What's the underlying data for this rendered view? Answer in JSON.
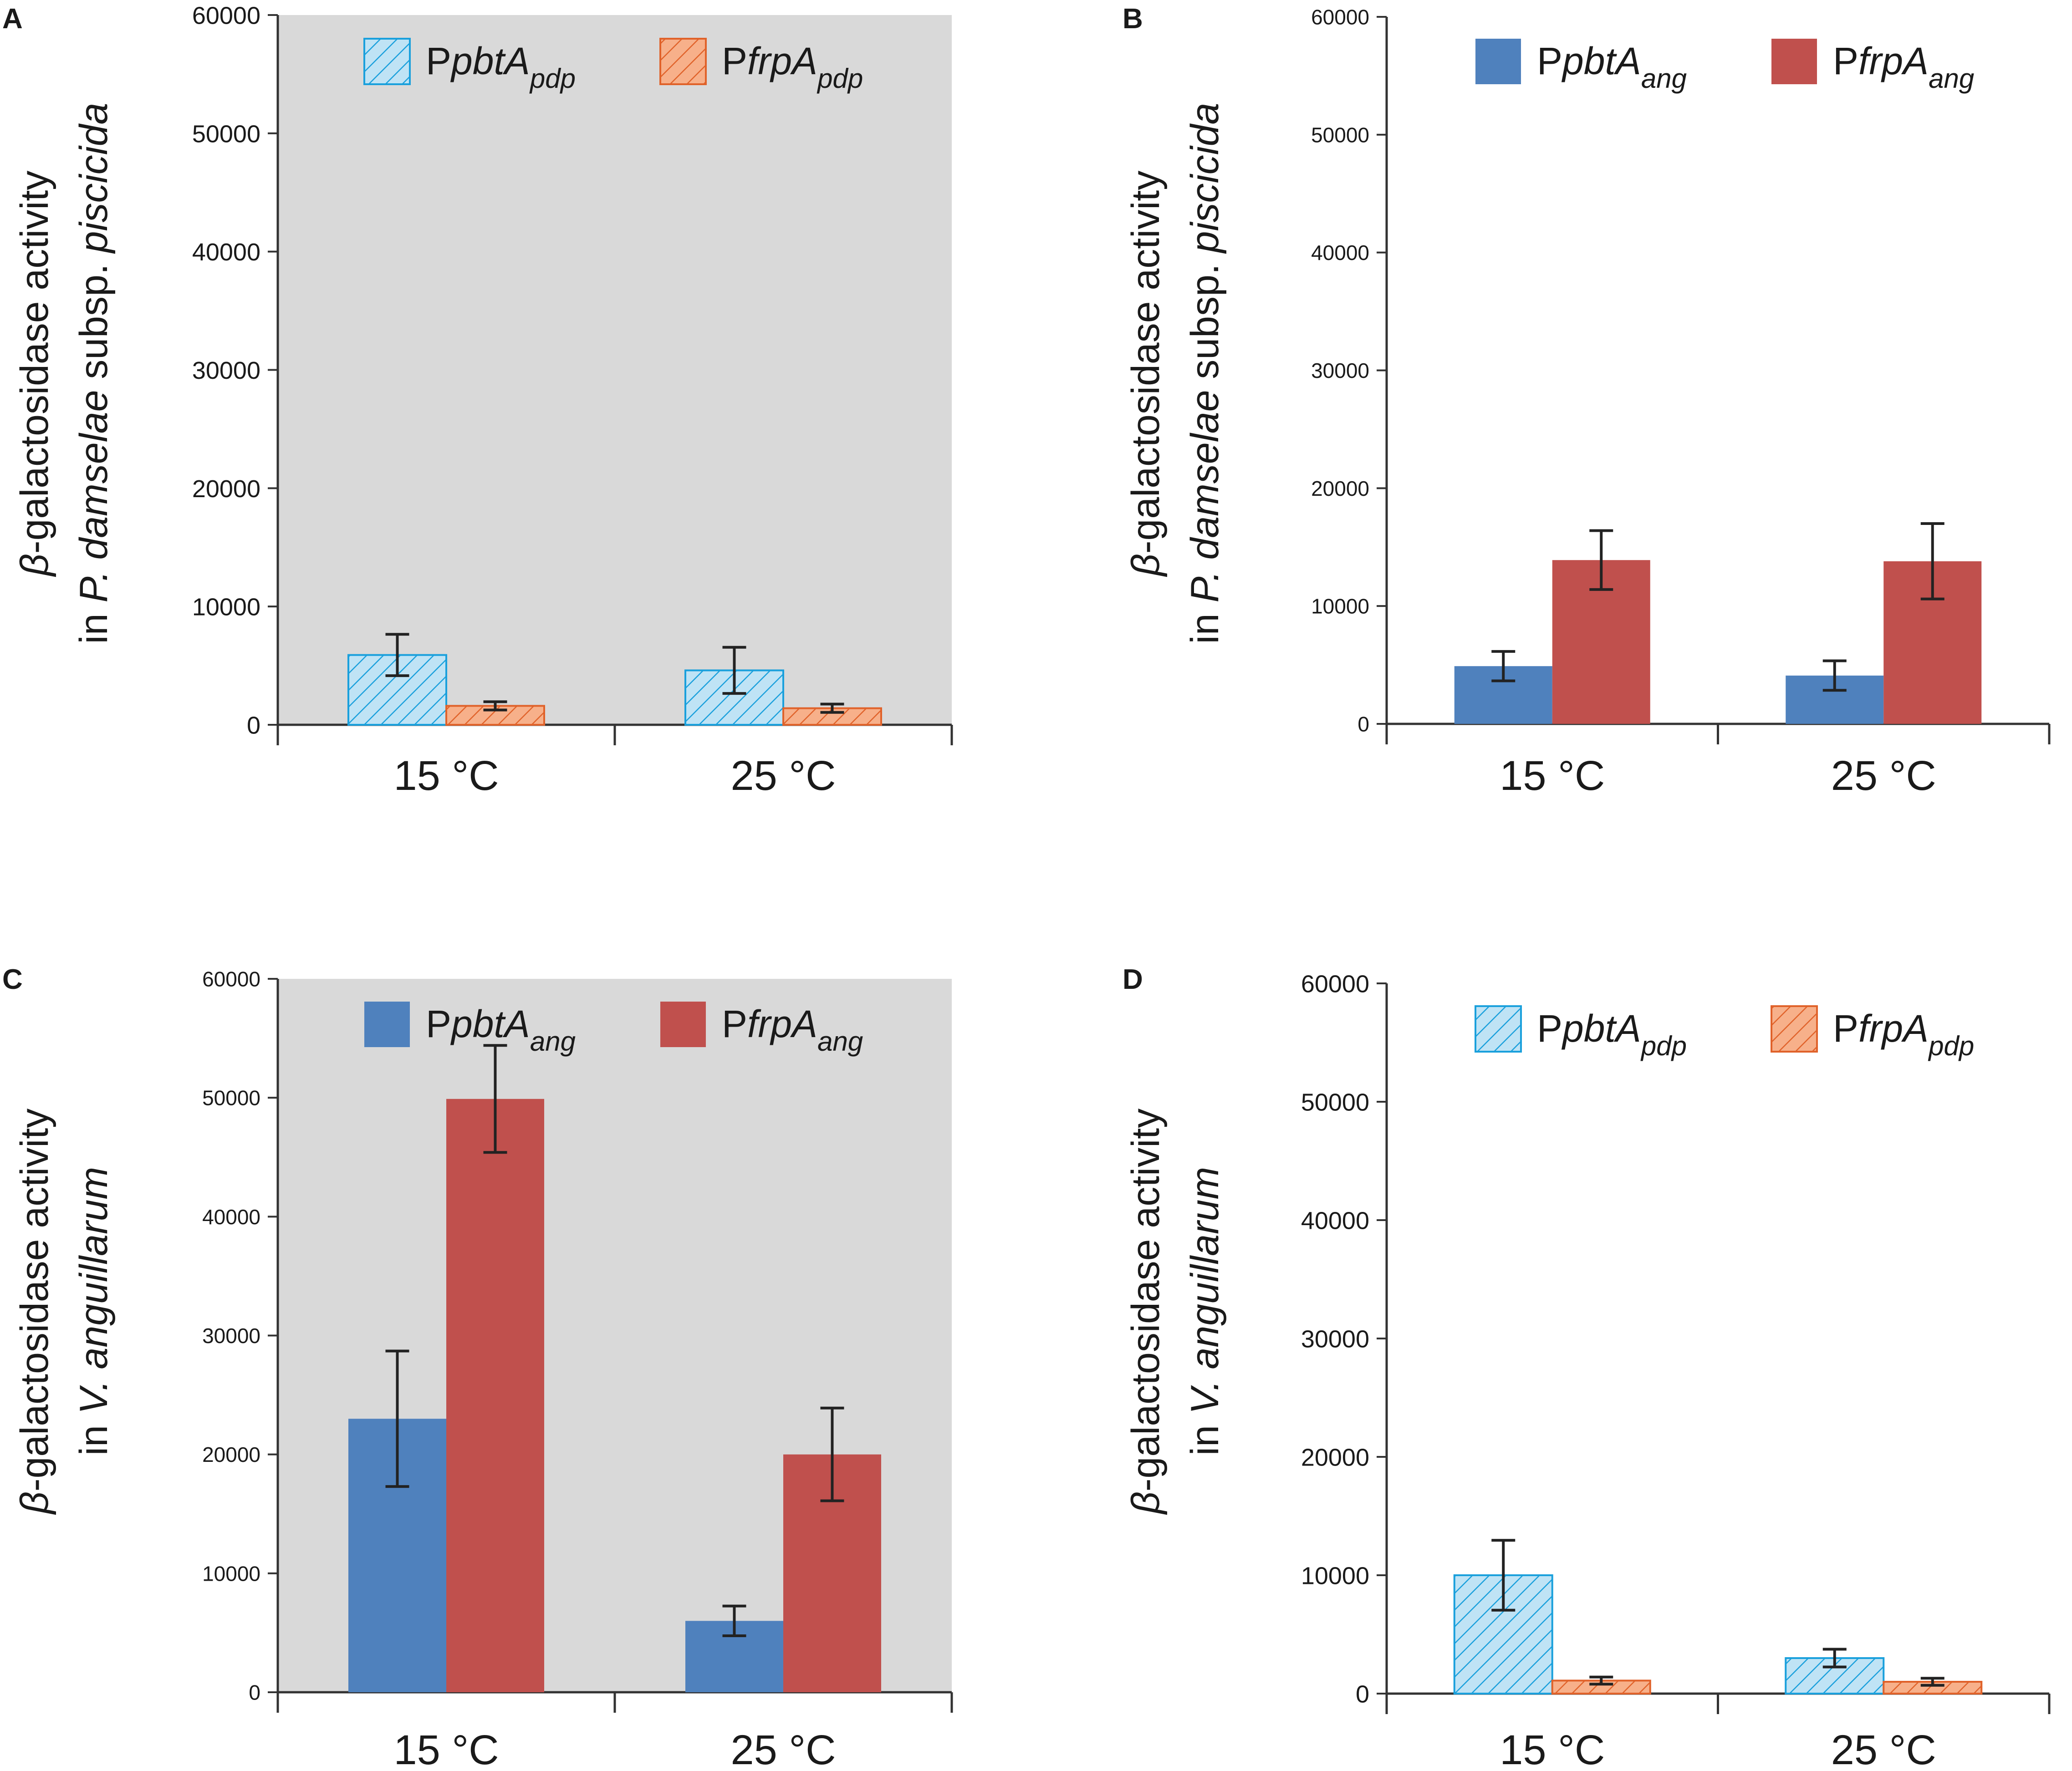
{
  "figure": {
    "colors": {
      "pdp_blue_fill": "#bfe3f5",
      "pdp_blue_stroke": "#1aa0dc",
      "pdp_orange_fill": "#f7b08a",
      "pdp_orange_stroke": "#e0622a",
      "ang_blue": "#4f81bd",
      "ang_red": "#c0504d",
      "plot_background": "#d9d9d9",
      "error_bar": "#222222"
    }
  },
  "chart_data": [
    {
      "panel": "A",
      "type": "bar",
      "background": "gray",
      "bar_style": "hatched",
      "ylabel_line1": "β-galactosidase activity",
      "ylabel_line2_prefix": "in ",
      "ylabel_line2_italic": "P. damselae",
      "ylabel_line2_mid": " subsp. ",
      "ylabel_line2_italic2": "piscicida",
      "ylim": [
        0,
        60000
      ],
      "yticks": [
        "0",
        "10000",
        "20000",
        "30000",
        "40000",
        "50000",
        "60000"
      ],
      "categories": [
        "15 °C",
        "25 °C"
      ],
      "series": [
        {
          "name_prefix": "P",
          "name_gene": "pbtA",
          "name_sub": "pdp",
          "color_key": "pdp_blue",
          "values": [
            5900,
            4600
          ],
          "errors": [
            1750,
            1950
          ]
        },
        {
          "name_prefix": "P",
          "name_gene": "frpA",
          "name_sub": "pdp",
          "color_key": "pdp_orange",
          "values": [
            1600,
            1400
          ],
          "errors": [
            350,
            350
          ]
        }
      ]
    },
    {
      "panel": "B",
      "type": "bar",
      "background": "white",
      "bar_style": "solid",
      "ylabel_line1": "β-galactosidase activity",
      "ylabel_line2_prefix": "in ",
      "ylabel_line2_italic": "P. damselae",
      "ylabel_line2_mid": " subsp. ",
      "ylabel_line2_italic2": "piscicida",
      "ylim": [
        0,
        60000
      ],
      "yticks": [
        "0",
        "10000",
        "20000",
        "30000",
        "40000",
        "50000",
        "60000"
      ],
      "categories": [
        "15 °C",
        "25 °C"
      ],
      "series": [
        {
          "name_prefix": "P",
          "name_gene": "pbtA",
          "name_sub": "ang",
          "color_key": "ang_blue",
          "values": [
            4900,
            4100
          ],
          "errors": [
            1250,
            1250
          ]
        },
        {
          "name_prefix": "P",
          "name_gene": "frpA",
          "name_sub": "ang",
          "color_key": "ang_red",
          "values": [
            13900,
            13800
          ],
          "errors": [
            2500,
            3200
          ]
        }
      ]
    },
    {
      "panel": "C",
      "type": "bar",
      "background": "gray",
      "bar_style": "solid",
      "ylabel_line1": "β-galactosidase activity",
      "ylabel_line2_prefix": "in ",
      "ylabel_line2_italic": "V. anguillarum",
      "ylabel_line2_mid": "",
      "ylabel_line2_italic2": "",
      "ylim": [
        0,
        60000
      ],
      "yticks": [
        "0",
        "10000",
        "20000",
        "30000",
        "40000",
        "50000",
        "60000"
      ],
      "categories": [
        "15 °C",
        "25 °C"
      ],
      "series": [
        {
          "name_prefix": "P",
          "name_gene": "pbtA",
          "name_sub": "ang",
          "color_key": "ang_blue",
          "values": [
            23000,
            6000
          ],
          "errors": [
            5700,
            1250
          ]
        },
        {
          "name_prefix": "P",
          "name_gene": "frpA",
          "name_sub": "ang",
          "color_key": "ang_red",
          "values": [
            49900,
            20000
          ],
          "errors": [
            4500,
            3900
          ]
        }
      ]
    },
    {
      "panel": "D",
      "type": "bar",
      "background": "white",
      "bar_style": "hatched",
      "ylabel_line1": "β-galactosidase activity",
      "ylabel_line2_prefix": "in ",
      "ylabel_line2_italic": "V. anguillarum",
      "ylabel_line2_mid": "",
      "ylabel_line2_italic2": "",
      "ylim": [
        0,
        60000
      ],
      "yticks": [
        "0",
        "10000",
        "20000",
        "30000",
        "40000",
        "50000",
        "60000"
      ],
      "categories": [
        "15 °C",
        "25 °C"
      ],
      "series": [
        {
          "name_prefix": "P",
          "name_gene": "pbtA",
          "name_sub": "pdp",
          "color_key": "pdp_blue",
          "values": [
            10000,
            3000
          ],
          "errors": [
            2950,
            750
          ]
        },
        {
          "name_prefix": "P",
          "name_gene": "frpA",
          "name_sub": "pdp",
          "color_key": "pdp_orange",
          "values": [
            1100,
            1000
          ],
          "errors": [
            300,
            300
          ]
        }
      ]
    }
  ]
}
